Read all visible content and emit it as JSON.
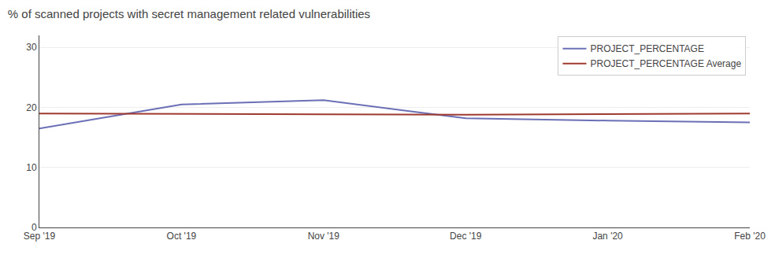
{
  "chart_data": {
    "type": "line",
    "title": "% of scanned projects with secret management related vulnerabilities",
    "categories": [
      "Sep '19",
      "Oct '19",
      "Nov '19",
      "Dec '19",
      "Jan '20",
      "Feb '20"
    ],
    "series": [
      {
        "name": "PROJECT_PERCENTAGE",
        "color": "#6b6fb5",
        "values": [
          16.5,
          20.5,
          21.2,
          18.2,
          17.8,
          17.5
        ]
      },
      {
        "name": "PROJECT_PERCENTAGE Average",
        "color": "#9e3a2f",
        "values": [
          19.0,
          18.9,
          18.85,
          18.8,
          18.9,
          19.0
        ]
      }
    ],
    "ylim": [
      0,
      32
    ],
    "yticks": [
      0,
      10,
      20,
      30
    ],
    "grid": true,
    "legend": "upper right"
  }
}
